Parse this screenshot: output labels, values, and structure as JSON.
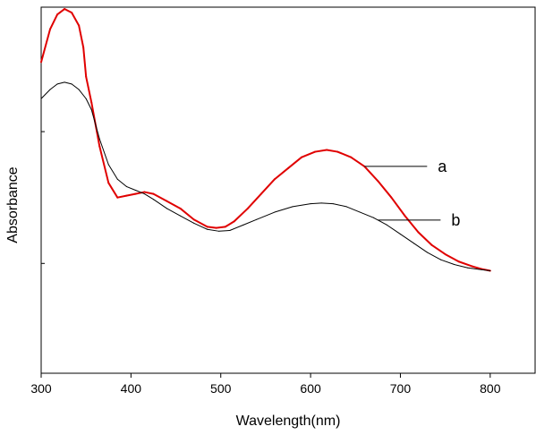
{
  "chart_data": {
    "type": "line",
    "xlabel": "Wavelength(nm)",
    "ylabel": "Absorbance",
    "xlim": [
      300,
      850
    ],
    "ylim": [
      0,
      1
    ],
    "x_ticks": [
      300,
      400,
      500,
      600,
      700,
      800
    ],
    "x_tick_labels": [
      "300",
      "400",
      "500",
      "600",
      "700",
      "800"
    ],
    "y_tick_values": [
      0.3,
      0.66
    ],
    "grid": false,
    "series": [
      {
        "name": "a",
        "color": "#e00000",
        "points": [
          [
            300,
            0.85
          ],
          [
            310,
            0.94
          ],
          [
            318,
            0.98
          ],
          [
            326,
            0.995
          ],
          [
            334,
            0.985
          ],
          [
            342,
            0.95
          ],
          [
            347,
            0.89
          ],
          [
            350,
            0.81
          ],
          [
            356,
            0.74
          ],
          [
            365,
            0.62
          ],
          [
            375,
            0.52
          ],
          [
            385,
            0.48
          ],
          [
            395,
            0.485
          ],
          [
            405,
            0.49
          ],
          [
            415,
            0.495
          ],
          [
            425,
            0.49
          ],
          [
            440,
            0.47
          ],
          [
            455,
            0.45
          ],
          [
            470,
            0.42
          ],
          [
            485,
            0.4
          ],
          [
            495,
            0.397
          ],
          [
            505,
            0.4
          ],
          [
            515,
            0.415
          ],
          [
            530,
            0.45
          ],
          [
            545,
            0.49
          ],
          [
            560,
            0.53
          ],
          [
            575,
            0.56
          ],
          [
            590,
            0.59
          ],
          [
            605,
            0.605
          ],
          [
            618,
            0.61
          ],
          [
            630,
            0.605
          ],
          [
            645,
            0.59
          ],
          [
            660,
            0.565
          ],
          [
            675,
            0.525
          ],
          [
            690,
            0.48
          ],
          [
            705,
            0.43
          ],
          [
            720,
            0.385
          ],
          [
            735,
            0.35
          ],
          [
            750,
            0.325
          ],
          [
            765,
            0.305
          ],
          [
            780,
            0.292
          ],
          [
            790,
            0.285
          ],
          [
            800,
            0.28
          ]
        ]
      },
      {
        "name": "b",
        "color": "#000000",
        "points": [
          [
            300,
            0.75
          ],
          [
            310,
            0.775
          ],
          [
            318,
            0.79
          ],
          [
            326,
            0.795
          ],
          [
            334,
            0.79
          ],
          [
            342,
            0.775
          ],
          [
            350,
            0.75
          ],
          [
            356,
            0.72
          ],
          [
            365,
            0.64
          ],
          [
            375,
            0.57
          ],
          [
            385,
            0.53
          ],
          [
            395,
            0.51
          ],
          [
            405,
            0.5
          ],
          [
            415,
            0.49
          ],
          [
            425,
            0.475
          ],
          [
            440,
            0.45
          ],
          [
            455,
            0.43
          ],
          [
            470,
            0.41
          ],
          [
            485,
            0.393
          ],
          [
            498,
            0.388
          ],
          [
            510,
            0.39
          ],
          [
            525,
            0.405
          ],
          [
            540,
            0.42
          ],
          [
            560,
            0.44
          ],
          [
            580,
            0.455
          ],
          [
            600,
            0.463
          ],
          [
            612,
            0.465
          ],
          [
            625,
            0.463
          ],
          [
            640,
            0.455
          ],
          [
            655,
            0.44
          ],
          [
            670,
            0.425
          ],
          [
            685,
            0.405
          ],
          [
            700,
            0.38
          ],
          [
            715,
            0.355
          ],
          [
            730,
            0.33
          ],
          [
            745,
            0.31
          ],
          [
            760,
            0.297
          ],
          [
            775,
            0.288
          ],
          [
            790,
            0.283
          ],
          [
            800,
            0.28
          ]
        ]
      }
    ],
    "annotations": [
      {
        "text": "a",
        "series": "a",
        "anchor_x": 660
      },
      {
        "text": "b",
        "series": "b",
        "anchor_x": 675
      }
    ]
  }
}
